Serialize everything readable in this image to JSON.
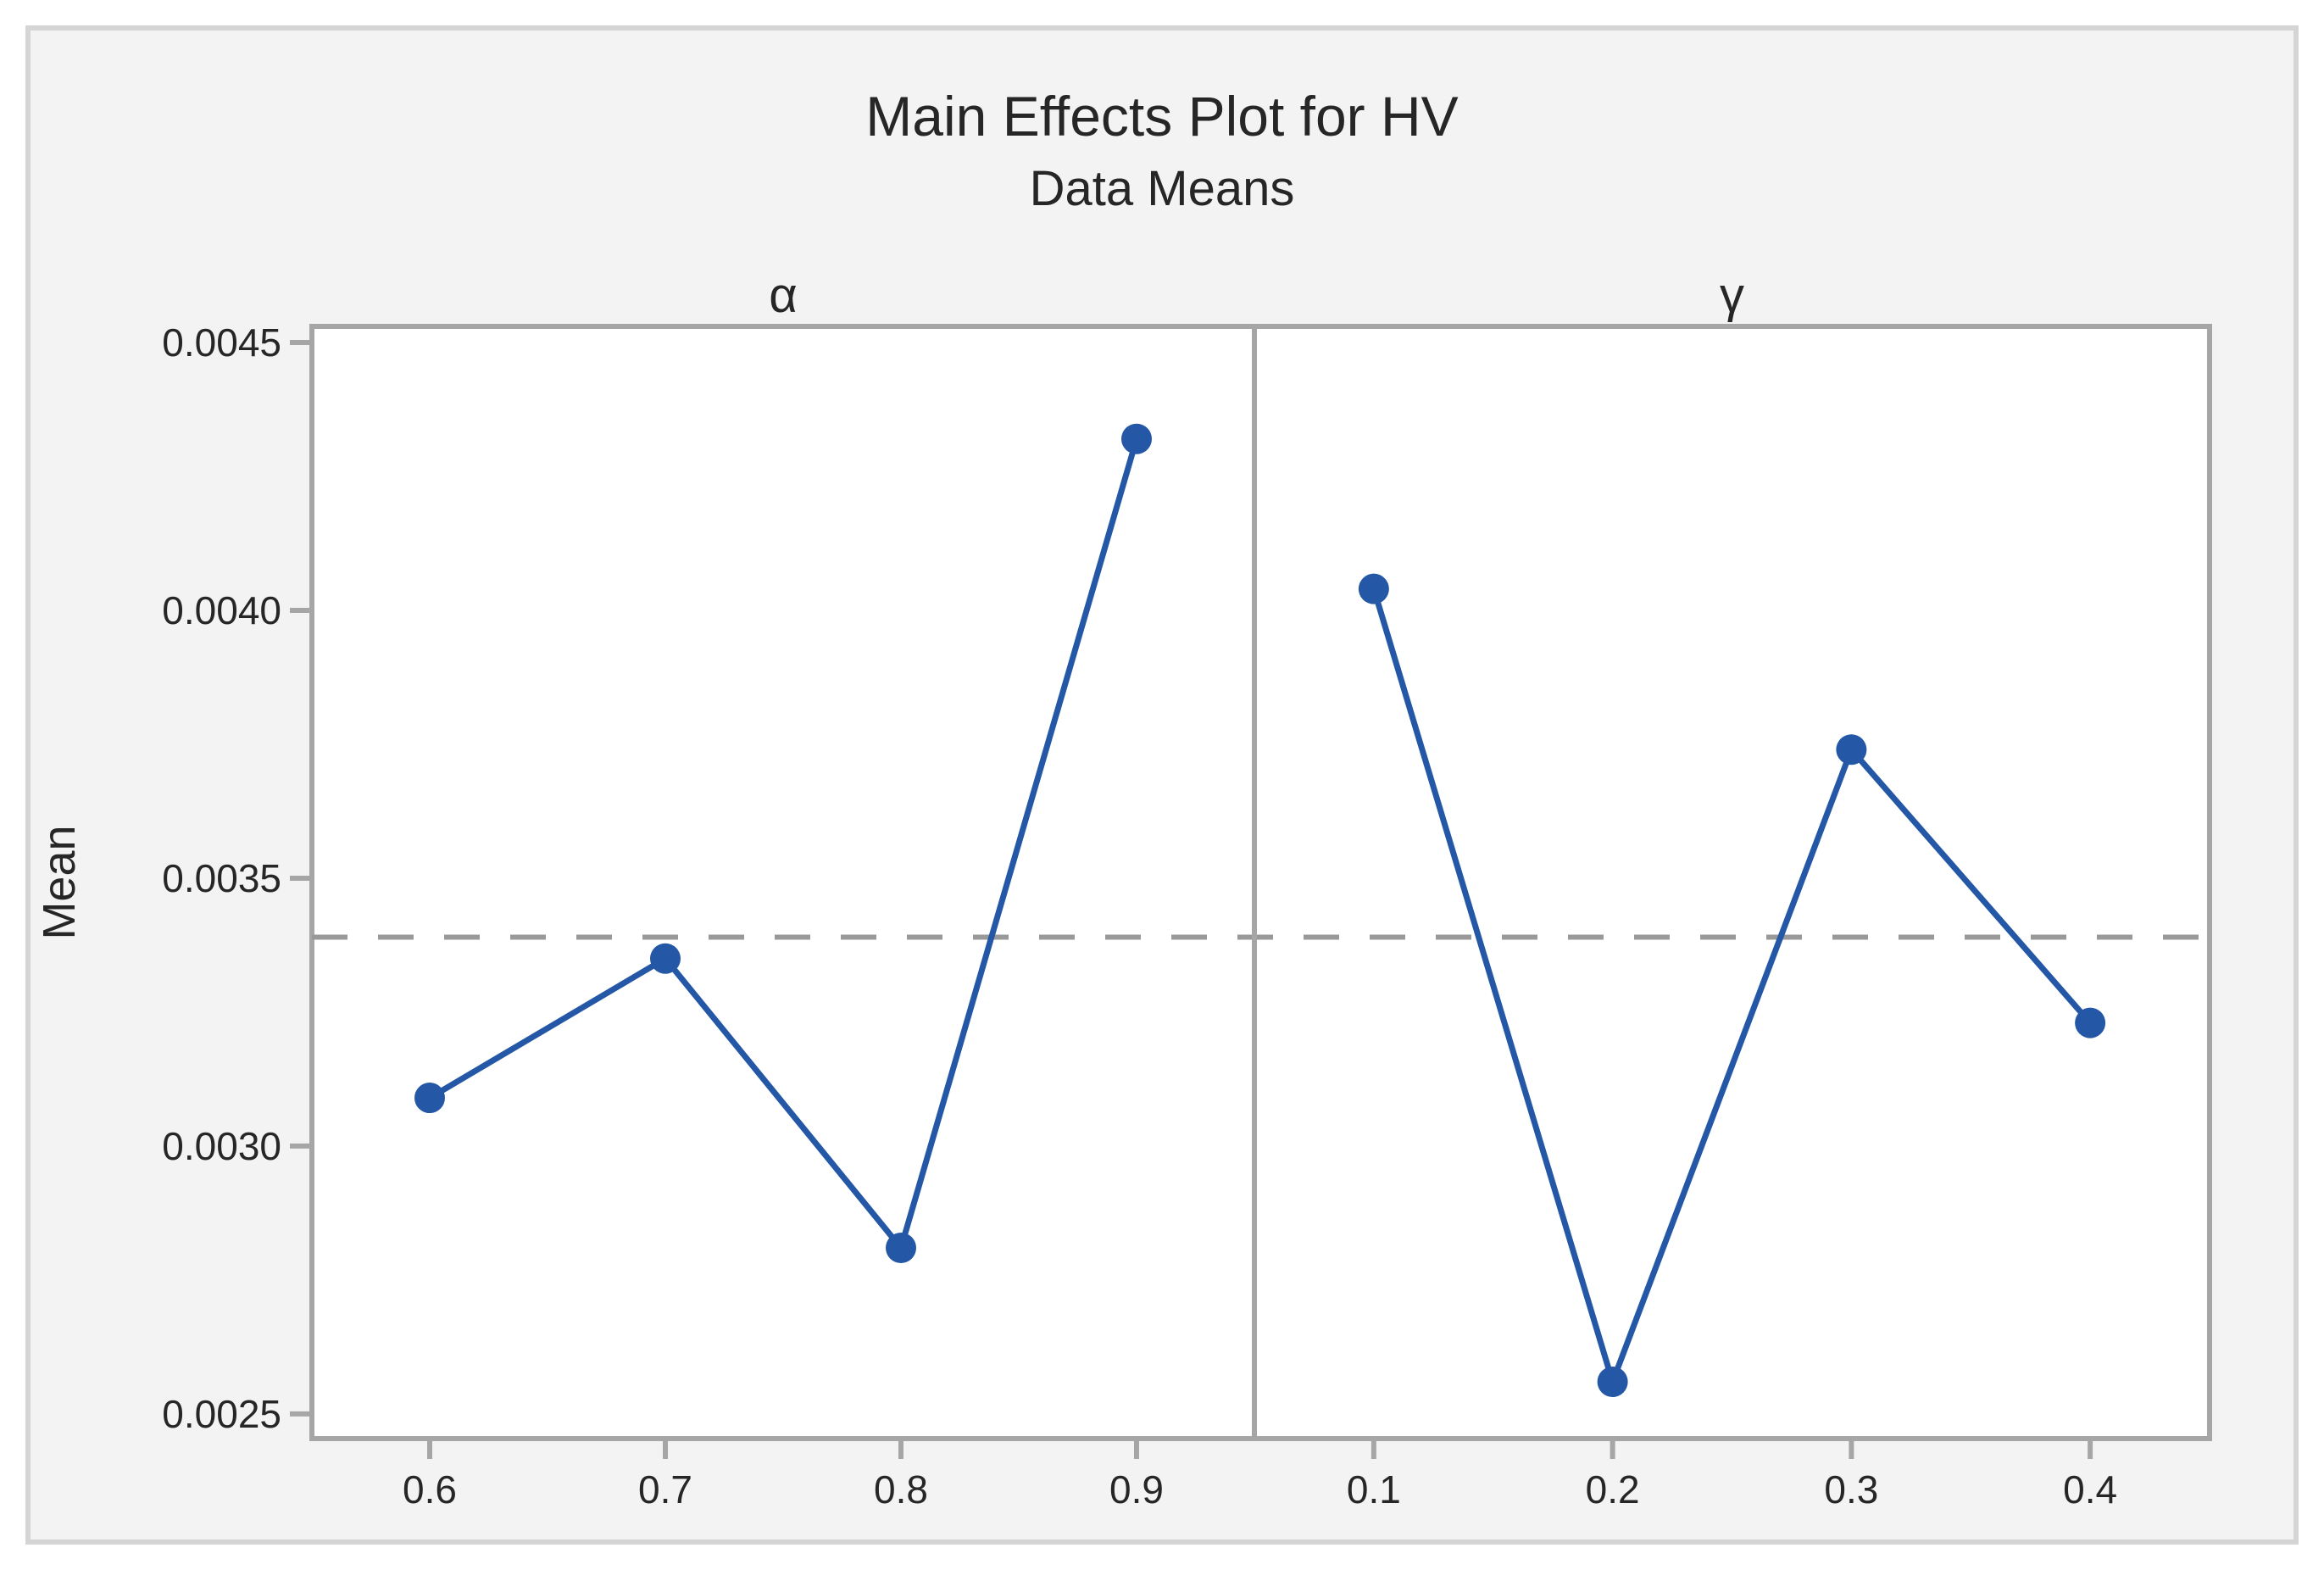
{
  "chart_data": {
    "type": "line",
    "title": "Main Effects Plot for HV",
    "subtitle": "Data Means",
    "ylabel": "Mean",
    "grand_mean": 0.00339,
    "ylim": [
      0.002454,
      0.00453
    ],
    "yticks": [
      0.0045,
      0.004,
      0.0035,
      0.003,
      0.0025
    ],
    "ytick_labels": [
      "0.0045",
      "0.0040",
      "0.0035",
      "0.0030",
      "0.0025"
    ],
    "grid": "off",
    "legend": "none",
    "panels": [
      {
        "label": "α",
        "categories": [
          "0.6",
          "0.7",
          "0.8",
          "0.9"
        ],
        "values": [
          0.00309,
          0.00335,
          0.00281,
          0.00432
        ]
      },
      {
        "label": "γ",
        "categories": [
          "0.1",
          "0.2",
          "0.3",
          "0.4"
        ],
        "values": [
          0.00404,
          0.00256,
          0.00374,
          0.00323
        ]
      }
    ],
    "colors": {
      "series": "#2457a5",
      "mean_line": "#999999",
      "axis": "#a6a6a6",
      "figure_background": "#f3f3f3",
      "plot_background": "#ffffff",
      "outer_border": "#d5d5d5",
      "text": "#262626"
    }
  }
}
